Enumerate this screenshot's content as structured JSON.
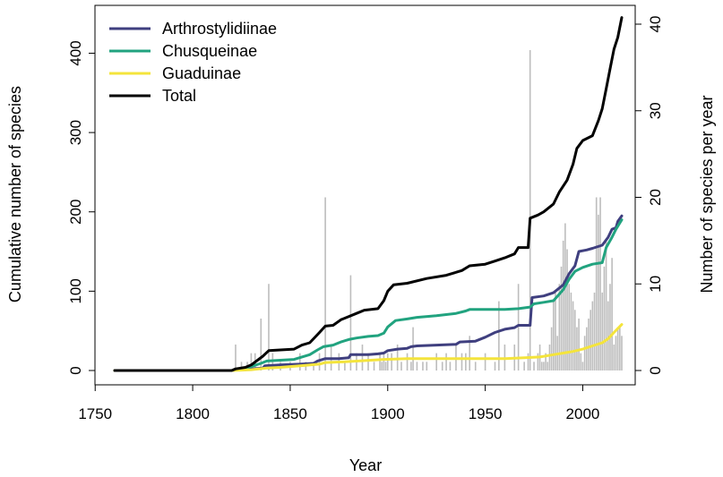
{
  "chart_data": {
    "type": "line",
    "title": "",
    "xlabel": "Year",
    "ylabel": "Cumulative number of species",
    "y2label": "Number of species per year",
    "xlim": [
      1760,
      2020
    ],
    "ylim": [
      0,
      440
    ],
    "y2lim": [
      0,
      40
    ],
    "x_ticks": [
      1750,
      1800,
      1850,
      1900,
      1950,
      2000
    ],
    "y_ticks": [
      0,
      100,
      200,
      300,
      400
    ],
    "y2_ticks": [
      0,
      10,
      20,
      30,
      40
    ],
    "grid": false,
    "legend_position": "top-left",
    "series": [
      {
        "name": "Arthrostylidiinae",
        "color": "#3f3f7f",
        "points": [
          [
            1760,
            0
          ],
          [
            1820,
            0
          ],
          [
            1822,
            1
          ],
          [
            1830,
            2
          ],
          [
            1836,
            3
          ],
          [
            1837,
            6
          ],
          [
            1845,
            7
          ],
          [
            1855,
            8
          ],
          [
            1862,
            9
          ],
          [
            1864,
            12
          ],
          [
            1868,
            15
          ],
          [
            1875,
            15
          ],
          [
            1880,
            16
          ],
          [
            1881,
            20
          ],
          [
            1890,
            20
          ],
          [
            1895,
            21
          ],
          [
            1898,
            22
          ],
          [
            1900,
            25
          ],
          [
            1905,
            27
          ],
          [
            1910,
            28
          ],
          [
            1912,
            30
          ],
          [
            1915,
            31
          ],
          [
            1925,
            32
          ],
          [
            1935,
            33
          ],
          [
            1937,
            36
          ],
          [
            1945,
            37
          ],
          [
            1950,
            42
          ],
          [
            1955,
            48
          ],
          [
            1960,
            52
          ],
          [
            1965,
            54
          ],
          [
            1967,
            57
          ],
          [
            1973,
            57
          ],
          [
            1974,
            92
          ],
          [
            1980,
            94
          ],
          [
            1985,
            98
          ],
          [
            1990,
            108
          ],
          [
            1993,
            122
          ],
          [
            1996,
            132
          ],
          [
            1998,
            150
          ],
          [
            2002,
            152
          ],
          [
            2005,
            154
          ],
          [
            2010,
            158
          ],
          [
            2013,
            168
          ],
          [
            2015,
            178
          ],
          [
            2017,
            180
          ],
          [
            2018,
            188
          ],
          [
            2020,
            195
          ]
        ]
      },
      {
        "name": "Chusqueinae",
        "color": "#21a37f",
        "points": [
          [
            1760,
            0
          ],
          [
            1820,
            0
          ],
          [
            1825,
            2
          ],
          [
            1830,
            5
          ],
          [
            1835,
            9
          ],
          [
            1838,
            12
          ],
          [
            1845,
            13
          ],
          [
            1852,
            14
          ],
          [
            1856,
            17
          ],
          [
            1860,
            20
          ],
          [
            1864,
            26
          ],
          [
            1867,
            30
          ],
          [
            1872,
            32
          ],
          [
            1876,
            36
          ],
          [
            1880,
            39
          ],
          [
            1884,
            41
          ],
          [
            1890,
            43
          ],
          [
            1895,
            44
          ],
          [
            1898,
            47
          ],
          [
            1900,
            55
          ],
          [
            1904,
            63
          ],
          [
            1910,
            65
          ],
          [
            1915,
            67
          ],
          [
            1925,
            69
          ],
          [
            1935,
            72
          ],
          [
            1940,
            75
          ],
          [
            1942,
            77
          ],
          [
            1950,
            77
          ],
          [
            1960,
            77
          ],
          [
            1967,
            78
          ],
          [
            1973,
            80
          ],
          [
            1975,
            84
          ],
          [
            1980,
            86
          ],
          [
            1985,
            88
          ],
          [
            1990,
            102
          ],
          [
            1993,
            115
          ],
          [
            1996,
            125
          ],
          [
            2000,
            130
          ],
          [
            2005,
            134
          ],
          [
            2010,
            136
          ],
          [
            2012,
            155
          ],
          [
            2015,
            168
          ],
          [
            2017,
            178
          ],
          [
            2020,
            190
          ]
        ]
      },
      {
        "name": "Guaduinae",
        "color": "#f4e43c",
        "points": [
          [
            1760,
            0
          ],
          [
            1820,
            0
          ],
          [
            1830,
            1
          ],
          [
            1838,
            3
          ],
          [
            1845,
            4
          ],
          [
            1855,
            6
          ],
          [
            1865,
            8
          ],
          [
            1868,
            10
          ],
          [
            1878,
            11
          ],
          [
            1885,
            12
          ],
          [
            1898,
            14
          ],
          [
            1910,
            15
          ],
          [
            1920,
            15
          ],
          [
            1940,
            15
          ],
          [
            1960,
            15
          ],
          [
            1970,
            16
          ],
          [
            1978,
            17
          ],
          [
            1985,
            20
          ],
          [
            1990,
            22
          ],
          [
            1995,
            24
          ],
          [
            2000,
            27
          ],
          [
            2005,
            31
          ],
          [
            2010,
            35
          ],
          [
            2013,
            40
          ],
          [
            2016,
            48
          ],
          [
            2020,
            58
          ]
        ]
      },
      {
        "name": "Total",
        "color": "#000000",
        "points": [
          [
            1760,
            0
          ],
          [
            1820,
            0
          ],
          [
            1822,
            2
          ],
          [
            1827,
            4
          ],
          [
            1830,
            7
          ],
          [
            1836,
            18
          ],
          [
            1839,
            25
          ],
          [
            1845,
            26
          ],
          [
            1852,
            27
          ],
          [
            1856,
            32
          ],
          [
            1860,
            35
          ],
          [
            1865,
            48
          ],
          [
            1868,
            56
          ],
          [
            1872,
            57
          ],
          [
            1876,
            64
          ],
          [
            1880,
            68
          ],
          [
            1884,
            72
          ],
          [
            1888,
            76
          ],
          [
            1895,
            78
          ],
          [
            1898,
            88
          ],
          [
            1900,
            100
          ],
          [
            1903,
            108
          ],
          [
            1910,
            110
          ],
          [
            1920,
            116
          ],
          [
            1930,
            120
          ],
          [
            1938,
            126
          ],
          [
            1942,
            132
          ],
          [
            1950,
            134
          ],
          [
            1955,
            138
          ],
          [
            1960,
            142
          ],
          [
            1965,
            147
          ],
          [
            1967,
            155
          ],
          [
            1972,
            155
          ],
          [
            1973,
            192
          ],
          [
            1977,
            196
          ],
          [
            1980,
            200
          ],
          [
            1985,
            210
          ],
          [
            1988,
            225
          ],
          [
            1992,
            240
          ],
          [
            1995,
            260
          ],
          [
            1997,
            280
          ],
          [
            2000,
            290
          ],
          [
            2005,
            296
          ],
          [
            2008,
            315
          ],
          [
            2010,
            330
          ],
          [
            2012,
            355
          ],
          [
            2014,
            380
          ],
          [
            2016,
            405
          ],
          [
            2018,
            420
          ],
          [
            2020,
            445
          ]
        ]
      }
    ],
    "bars": {
      "name": "Species per year",
      "color": "#bdbdbd",
      "x": [
        1822,
        1825,
        1828,
        1830,
        1832,
        1835,
        1839,
        1841,
        1845,
        1850,
        1855,
        1858,
        1862,
        1865,
        1868,
        1871,
        1875,
        1878,
        1881,
        1884,
        1887,
        1890,
        1893,
        1896,
        1897,
        1898,
        1899,
        1900,
        1902,
        1905,
        1907,
        1910,
        1912,
        1913,
        1915,
        1918,
        1920,
        1925,
        1928,
        1930,
        1932,
        1935,
        1938,
        1940,
        1942,
        1945,
        1950,
        1955,
        1957,
        1960,
        1965,
        1967,
        1970,
        1972,
        1973,
        1975,
        1977,
        1978,
        1979,
        1980,
        1981,
        1982,
        1983,
        1984,
        1985,
        1986,
        1987,
        1988,
        1989,
        1990,
        1991,
        1992,
        1993,
        1994,
        1995,
        1996,
        1997,
        1998,
        1999,
        2000,
        2001,
        2002,
        2003,
        2004,
        2005,
        2006,
        2007,
        2008,
        2009,
        2010,
        2011,
        2012,
        2013,
        2014,
        2015,
        2016,
        2017,
        2018,
        2019,
        2020
      ],
      "values": [
        3,
        1,
        1,
        2,
        2,
        6,
        10,
        2,
        1,
        1,
        2,
        1,
        1,
        2,
        20,
        3,
        2,
        1,
        11,
        2,
        3,
        2,
        1,
        2,
        1,
        2,
        1,
        2,
        2,
        3,
        1,
        2,
        1,
        5,
        1,
        1,
        1,
        2,
        1,
        2,
        1,
        3,
        2,
        2,
        4,
        1,
        2,
        1,
        8,
        3,
        3,
        10,
        1,
        2,
        37,
        1,
        2,
        3,
        1,
        1,
        2,
        1,
        3,
        5,
        8,
        9,
        4,
        10,
        12,
        15,
        17,
        14,
        10,
        9,
        8,
        7,
        5,
        6,
        2,
        1,
        4,
        5,
        6,
        7,
        8,
        9,
        20,
        18,
        20,
        9,
        12,
        15,
        8,
        10,
        13,
        3,
        4,
        5,
        5,
        4
      ]
    }
  }
}
